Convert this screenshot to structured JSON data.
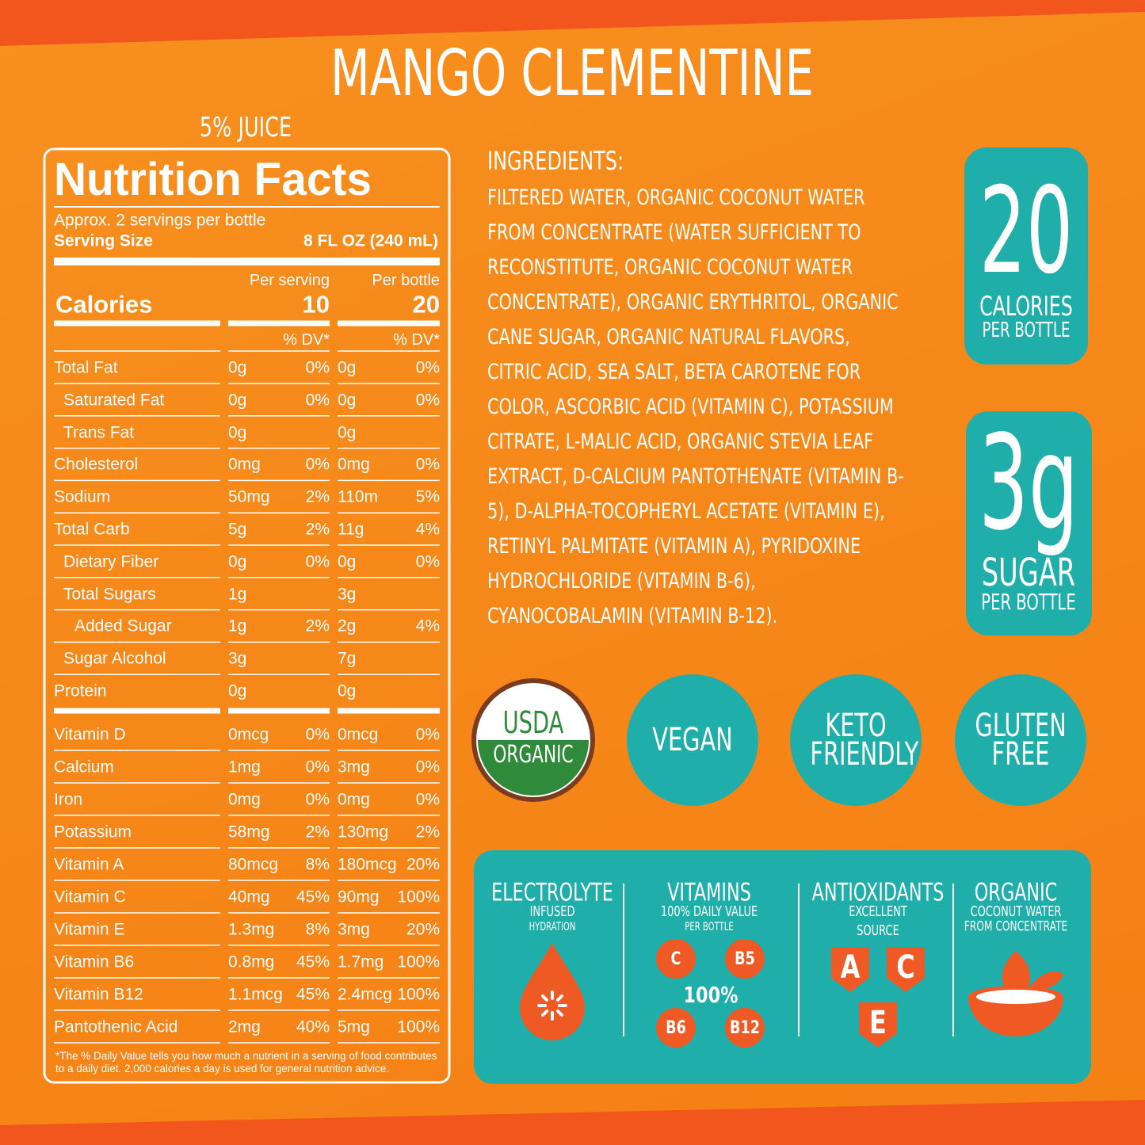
{
  "title": "MANGO CLEMENTINE",
  "juice": "5% JUICE",
  "nutrition": {
    "heading": "Nutrition Facts",
    "servings": "Approx. 2 servings per bottle",
    "serving_size_label": "Serving Size",
    "serving_size": "8 FL OZ (240 mL)",
    "per_serving": "Per serving",
    "per_bottle": "Per bottle",
    "calories_label": "Calories",
    "calories_serving": "10",
    "calories_bottle": "20",
    "dv_serving": "% DV*",
    "dv_bottle": "% DV*",
    "rows": [
      {
        "name": "Total Fat",
        "serving": "0g",
        "serving_dv": "0%",
        "bottle": "0g",
        "bottle_dv": "0%"
      },
      {
        "name": "Saturated Fat",
        "serving": "0g",
        "serving_dv": "0%",
        "bottle": "0g",
        "bottle_dv": "0%"
      },
      {
        "name": "Trans Fat",
        "serving": "0g",
        "bottle": "0g"
      },
      {
        "name": "Cholesterol",
        "serving": "0mg",
        "serving_dv": "0%",
        "bottle": "0mg",
        "bottle_dv": "0%"
      },
      {
        "name": "Sodium",
        "serving": "50mg",
        "serving_dv": "2%",
        "bottle": "110m",
        "bottle_dv": "5%"
      },
      {
        "name": "Total Carb",
        "serving": "5g",
        "serving_dv": "2%",
        "bottle": "11g",
        "bottle_dv": "4%"
      },
      {
        "name": "Dietary Fiber",
        "serving": "0g",
        "serving_dv": "0%",
        "bottle": "0g",
        "bottle_dv": "0%"
      },
      {
        "name": "Total Sugars",
        "serving": "1g",
        "bottle": "3g"
      },
      {
        "name": "Added Sugar",
        "serving": "1g",
        "serving_dv": "2%",
        "bottle": "2g",
        "bottle_dv": "4%"
      },
      {
        "name": "Sugar Alcohol",
        "serving": "3g",
        "bottle": "7g"
      },
      {
        "name": "Protein",
        "serving": "0g",
        "bottle": "0g"
      }
    ],
    "vitamins": [
      {
        "name": "Vitamin D",
        "serving": "0mcg",
        "serving_dv": "0%",
        "bottle": "0mcg",
        "bottle_dv": "0%"
      },
      {
        "name": "Calcium",
        "serving": "1mg",
        "serving_dv": "0%",
        "bottle": "3mg",
        "bottle_dv": "0%"
      },
      {
        "name": "Iron",
        "serving": "0mg",
        "serving_dv": "0%",
        "bottle": "0mg",
        "bottle_dv": "0%"
      },
      {
        "name": "Potassium",
        "serving": "58mg",
        "serving_dv": "2%",
        "bottle": "130mg",
        "bottle_dv": "2%"
      },
      {
        "name": "Vitamin A",
        "serving": "80mcg",
        "serving_dv": "8%",
        "bottle": "180mcg",
        "bottle_dv": "20%"
      },
      {
        "name": "Vitamin C",
        "serving": "40mg",
        "serving_dv": "45%",
        "bottle": "90mg",
        "bottle_dv": "100%"
      },
      {
        "name": "Vitamin E",
        "serving": "1.3mg",
        "serving_dv": "8%",
        "bottle": "3mg",
        "bottle_dv": "20%"
      },
      {
        "name": "Vitamin B6",
        "serving": "0.8mg",
        "serving_dv": "45%",
        "bottle": "1.7mg",
        "bottle_dv": "100%"
      },
      {
        "name": "Vitamin B12",
        "serving": "1.1mcg",
        "serving_dv": "45%",
        "bottle": "2.4mcg",
        "bottle_dv": "100%"
      },
      {
        "name": "Pantothenic Acid",
        "serving": "2mg",
        "serving_dv": "40%",
        "bottle": "5mg",
        "bottle_dv": "100%"
      }
    ],
    "footnote": "*The % Daily Value tells you how much a nutrient in a serving of food contributes to a daily diet. 2,000 calories a day is used for general nutrition advice."
  },
  "ingredients": {
    "heading": "INGREDIENTS:",
    "text": "FILTERED WATER, ORGANIC COCONUT WATER FROM CONCENTRATE (WATER SUFFICIENT TO RECONSTITUTE, ORGANIC COCONUT WATER CONCENTRATE), ORGANIC ERYTHRITOL, ORGANIC CANE SUGAR, ORGANIC NATURAL FLAVORS, CITRIC ACID, SEA SALT, BETA CAROTENE FOR COLOR, ASCORBIC ACID (VITAMIN C), POTASSIUM CITRATE, L-MALIC ACID, ORGANIC STEVIA LEAF EXTRACT, D-CALCIUM PANTOTHENATE (VITAMIN B-5), D-ALPHA-TOCOPHERYL ACETATE (VITAMIN E), RETINYL PALMITATE (VITAMIN A), PYRIDOXINE HYDROCHLORIDE (VITAMIN B-6), CYANOCOBALAMIN (VITAMIN B-12)."
  },
  "badges": [
    {
      "value": "20",
      "label": "CALORIES",
      "sub": "PER BOTTLE"
    },
    {
      "value": "3g",
      "label": "SUGAR",
      "sub": "PER BOTTLE"
    }
  ],
  "certifications": {
    "usda": "USDA",
    "organic": "ORGANIC",
    "items": [
      "VEGAN",
      "KETO FRIENDLY",
      "GLUTEN FREE"
    ]
  },
  "benefits": [
    {
      "title": "ELECTROLYTE",
      "lines": [
        "INFUSED",
        "HYDRATION"
      ]
    },
    {
      "title": "VITAMINS",
      "lines": [
        "100% DAILY VALUE",
        "PER BOTTLE"
      ]
    },
    {
      "title": "ANTIOXIDANTS",
      "lines": [
        "EXCELLENT",
        "SOURCE"
      ]
    },
    {
      "title": "ORGANIC",
      "lines": [
        "COCONUT WATER",
        "FROM CONCENTRATE"
      ]
    }
  ],
  "vitamin_icons": [
    "C",
    "B5",
    "B6",
    "B12"
  ],
  "vitamin_center": "100%",
  "antioxidant_icons": [
    "A",
    "C",
    "E"
  ]
}
